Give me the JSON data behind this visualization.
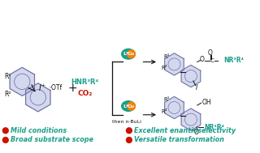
{
  "bg_color": "#ffffff",
  "teal_color": "#1a9e8a",
  "red_color": "#cc1100",
  "orange_color": "#f0820a",
  "blue_purple_fill": "#b0b8e0",
  "blue_purple_stroke": "#7070a0",
  "dark": "#111111",
  "bullet_items_left": [
    "Mild conditions",
    "Broad substrate scope"
  ],
  "bullet_items_right": [
    "Excellent enantioselectivity",
    "Versatile transformation"
  ]
}
